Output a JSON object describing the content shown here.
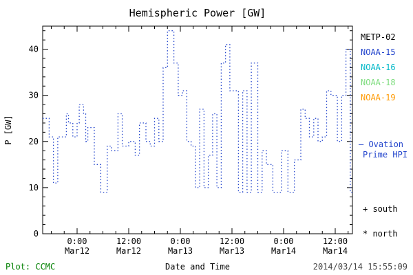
{
  "title": "Hemispheric Power [GW]",
  "footer": {
    "plot_credit": "Plot: CCMC",
    "credit_color": "#008000",
    "timestamp": "2014/03/14 15:55:09",
    "timestamp_color": "#444444"
  },
  "legend": {
    "satellites": [
      {
        "label": "METP-02",
        "color": "#000000"
      },
      {
        "label": "NOAA-15",
        "color": "#2244cc"
      },
      {
        "label": "NOAA-16",
        "color": "#00b8c8"
      },
      {
        "label": "NOAA-18",
        "color": "#7ddc7d"
      },
      {
        "label": "NOAA-19",
        "color": "#ff9900"
      }
    ],
    "ovation_line1": "— Ovation",
    "ovation_line2": "Prime HPI",
    "ovation_color": "#2244cc",
    "south_label": "+ south",
    "north_label": "* north",
    "marker_color": "#000000"
  },
  "chart_data": {
    "type": "line",
    "title": "Hemispheric Power [GW]",
    "xlabel": "Date and Time",
    "ylabel": "P [GW]",
    "ylim": [
      0,
      45
    ],
    "yticks": [
      0,
      10,
      20,
      30,
      40
    ],
    "x_range_hours": [
      -8,
      64
    ],
    "xtick_hours": [
      0,
      12,
      24,
      36,
      48,
      60
    ],
    "xtick_labels": [
      [
        "0:00",
        "Mar12"
      ],
      [
        "12:00",
        "Mar12"
      ],
      [
        "0:00",
        "Mar13"
      ],
      [
        "12:00",
        "Mar13"
      ],
      [
        "0:00",
        "Mar14"
      ],
      [
        "12:00",
        "Mar14"
      ]
    ],
    "line_color": "#2244cc",
    "line_style": "dotted",
    "step": true,
    "x_hours": [
      -8,
      -6.5,
      -5.5,
      -4.5,
      -2.5,
      -2,
      -1,
      0,
      0.5,
      1.5,
      2,
      2.5,
      4,
      5.5,
      7,
      8,
      9.5,
      10.5,
      12,
      13.5,
      14.5,
      16,
      17,
      18,
      19,
      20,
      21,
      22.5,
      23.5,
      24.5,
      25.5,
      26.5,
      27.5,
      28.5,
      29.5,
      30.5,
      31.5,
      32.5,
      33.5,
      34.5,
      35.5,
      36.5,
      37.5,
      38.5,
      39.5,
      40.5,
      42,
      43,
      44,
      45.5,
      47.5,
      49,
      50.5,
      52,
      53,
      54,
      55,
      56,
      57,
      58,
      59,
      60.5,
      61.5,
      62.5,
      63.5,
      64
    ],
    "values": [
      25,
      21,
      11,
      21,
      26,
      24,
      21,
      24,
      28,
      26,
      20,
      23,
      15,
      9,
      19,
      18,
      26,
      19,
      20,
      17,
      24,
      20,
      19,
      25,
      20,
      36,
      44,
      37,
      30,
      31,
      20,
      19,
      10,
      27,
      10,
      17,
      26,
      10,
      37,
      41,
      31,
      31,
      9,
      31,
      9,
      37,
      9,
      18,
      15,
      9,
      18,
      9,
      16,
      27,
      25,
      21,
      25,
      20,
      21,
      31,
      30,
      20,
      30,
      40,
      9,
      9
    ],
    "grid": false,
    "legend_position": "right-outside"
  }
}
